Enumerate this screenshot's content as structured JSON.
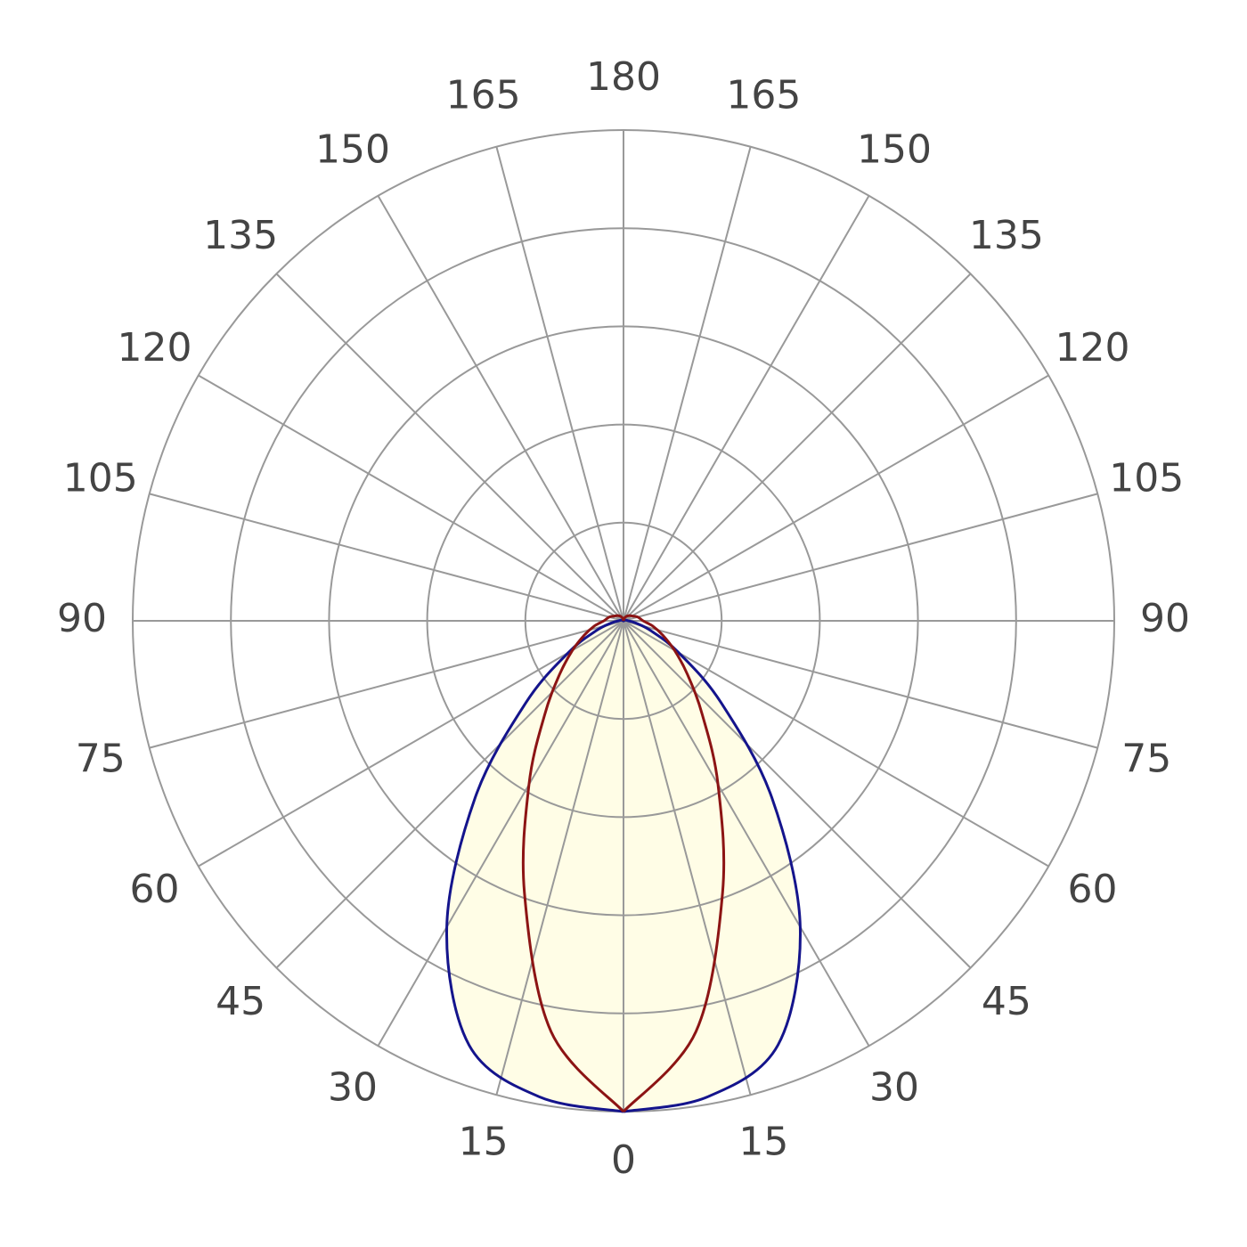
{
  "chart_data": {
    "type": "polar",
    "theta_ticks": [
      0,
      15,
      30,
      45,
      60,
      75,
      90,
      105,
      120,
      135,
      150,
      165,
      180
    ],
    "rlim": [
      0,
      1
    ],
    "rticks": [
      0.2,
      0.4,
      0.6,
      0.8,
      1
    ],
    "grid": true,
    "fill": "#fffde6",
    "angles": [
      0,
      10,
      20,
      30,
      40,
      50,
      60,
      70,
      80,
      90,
      105,
      120,
      135,
      150,
      165,
      180
    ],
    "series": [
      {
        "color": "#14148c",
        "values": [
          1.0,
          0.985,
          0.92,
          0.72,
          0.47,
          0.26,
          0.13,
          0.06,
          0.025,
          0.01,
          0.005,
          0,
          0,
          0,
          0,
          0
        ]
      },
      {
        "color": "#8c1414",
        "values": [
          1.0,
          0.85,
          0.59,
          0.385,
          0.25,
          0.17,
          0.12,
          0.085,
          0.06,
          0.04,
          0.03,
          0.02,
          0.015,
          0.01,
          0.005,
          0
        ]
      }
    ]
  }
}
